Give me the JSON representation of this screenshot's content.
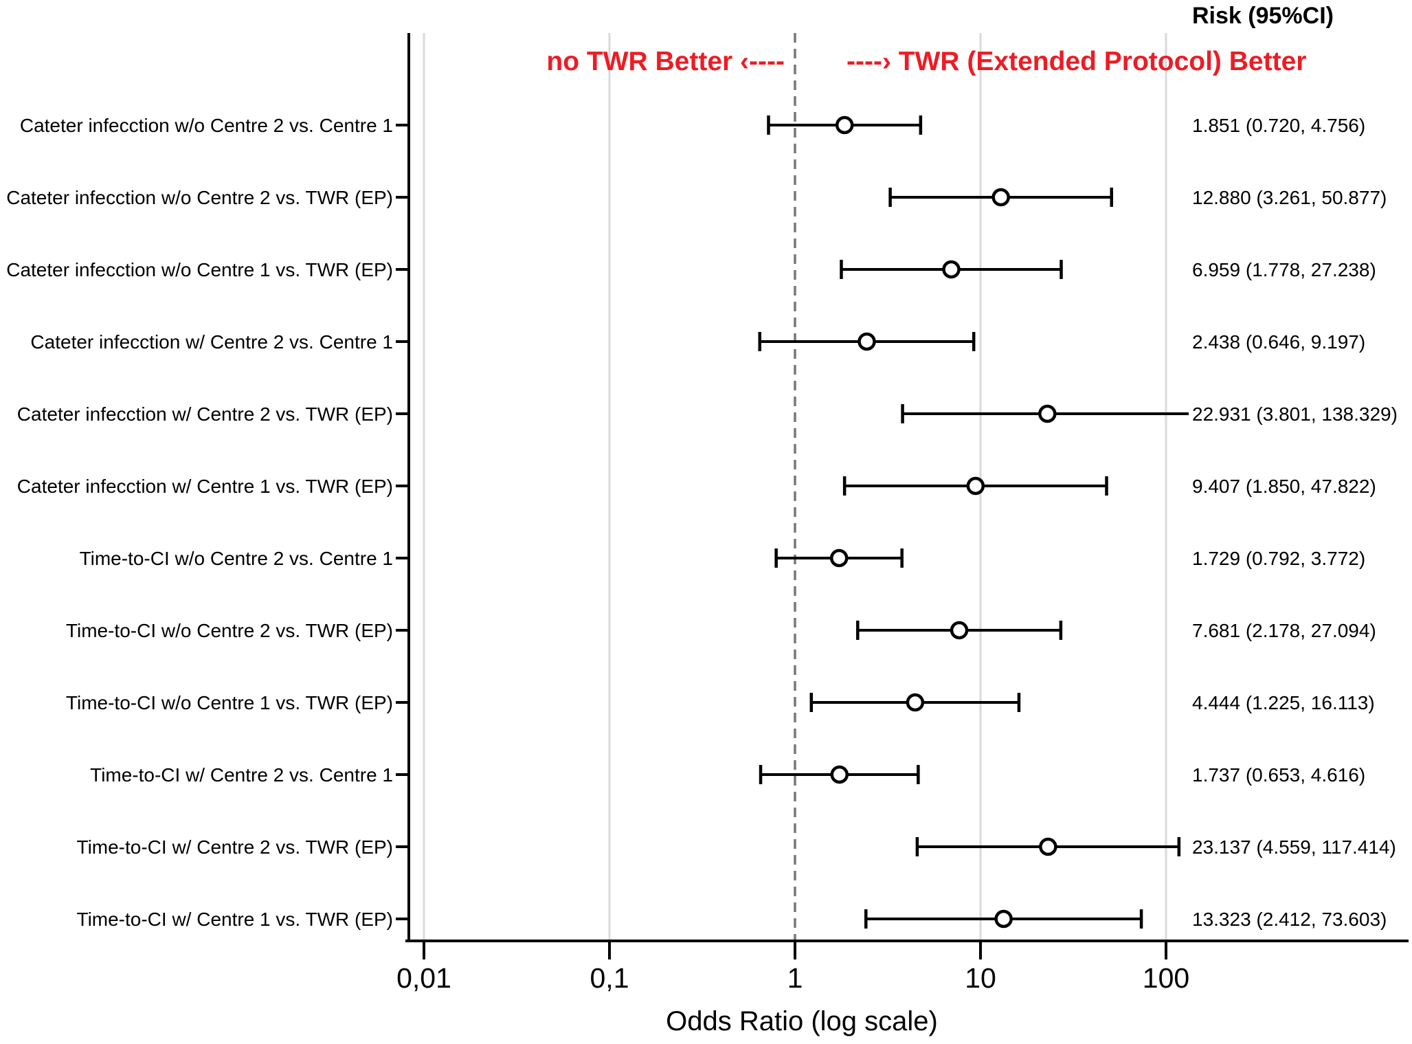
{
  "header": {
    "risk_label": "Risk (95%CI)"
  },
  "annotations": {
    "left": "no TWR Better ‹----",
    "right": "----› TWR (Extended Protocol) Better",
    "color": "#ed1c24"
  },
  "chart_data": {
    "type": "scatter",
    "subtype": "forest-plot",
    "xlabel": "Odds Ratio (log scale)",
    "x_scale": "log",
    "x_ticks": [
      {
        "label": "0,01",
        "value": 0.01
      },
      {
        "label": "0,1",
        "value": 0.1
      },
      {
        "label": "1",
        "value": 1
      },
      {
        "label": "10",
        "value": 10
      },
      {
        "label": "100",
        "value": 100
      }
    ],
    "reference_line": 1,
    "grid_values": [
      0.01,
      0.1,
      10,
      100
    ],
    "value_column_header": "Risk (95%CI)",
    "rows": [
      {
        "label": "Cateter infecction w/o Centre 2 vs. Centre 1",
        "or": 1.851,
        "low": 0.72,
        "high": 4.756,
        "risk_text": "1.851 (0.720, 4.756)"
      },
      {
        "label": "Cateter infecction w/o Centre 2 vs. TWR (EP)",
        "or": 12.88,
        "low": 3.261,
        "high": 50.877,
        "risk_text": "12.880 (3.261, 50.877)"
      },
      {
        "label": "Cateter infecction w/o Centre 1 vs. TWR (EP)",
        "or": 6.959,
        "low": 1.778,
        "high": 27.238,
        "risk_text": "6.959 (1.778, 27.238)"
      },
      {
        "label": "Cateter infecction w/ Centre 2 vs. Centre 1",
        "or": 2.438,
        "low": 0.646,
        "high": 9.197,
        "risk_text": "2.438 (0.646, 9.197)"
      },
      {
        "label": "Cateter infecction w/ Centre 2 vs. TWR (EP)",
        "or": 22.931,
        "low": 3.801,
        "high": 138.329,
        "risk_text": "22.931 (3.801, 138.329)"
      },
      {
        "label": "Cateter infecction w/ Centre 1 vs. TWR (EP)",
        "or": 9.407,
        "low": 1.85,
        "high": 47.822,
        "risk_text": "9.407 (1.850, 47.822)"
      },
      {
        "label": "Time-to-CI w/o Centre 2 vs. Centre 1",
        "or": 1.729,
        "low": 0.792,
        "high": 3.772,
        "risk_text": "1.729 (0.792, 3.772)"
      },
      {
        "label": "Time-to-CI w/o Centre 2 vs. TWR (EP)",
        "or": 7.681,
        "low": 2.178,
        "high": 27.094,
        "risk_text": "7.681 (2.178, 27.094)"
      },
      {
        "label": "Time-to-CI w/o Centre 1 vs. TWR (EP)",
        "or": 4.444,
        "low": 1.225,
        "high": 16.113,
        "risk_text": "4.444 (1.225, 16.113)"
      },
      {
        "label": "Time-to-CI w/ Centre 2 vs. Centre 1",
        "or": 1.737,
        "low": 0.653,
        "high": 4.616,
        "risk_text": "1.737 (0.653, 4.616)"
      },
      {
        "label": "Time-to-CI w/ Centre 2 vs. TWR (EP)",
        "or": 23.137,
        "low": 4.559,
        "high": 117.414,
        "risk_text": "23.137 (4.559, 117.414)"
      },
      {
        "label": "Time-to-CI w/ Centre 1 vs. TWR (EP)",
        "or": 13.323,
        "low": 2.412,
        "high": 73.603,
        "risk_text": "13.323 (2.412, 73.603)"
      }
    ]
  }
}
